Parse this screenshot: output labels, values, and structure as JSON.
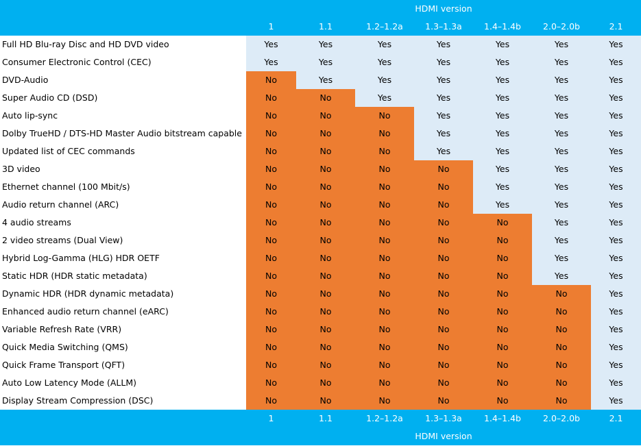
{
  "table": {
    "caption": "HDMI version",
    "versions": [
      "1",
      "1.1",
      "1.2–1.2a",
      "1.3–1.3a",
      "1.4–1.4b",
      "2.0–2.0b",
      "2.1"
    ],
    "rows": [
      {
        "feature": "Full HD Blu-ray Disc and HD DVD video",
        "values": [
          "Yes",
          "Yes",
          "Yes",
          "Yes",
          "Yes",
          "Yes",
          "Yes"
        ]
      },
      {
        "feature": "Consumer Electronic Control (CEC)",
        "values": [
          "Yes",
          "Yes",
          "Yes",
          "Yes",
          "Yes",
          "Yes",
          "Yes"
        ]
      },
      {
        "feature": "DVD-Audio",
        "values": [
          "No",
          "Yes",
          "Yes",
          "Yes",
          "Yes",
          "Yes",
          "Yes"
        ]
      },
      {
        "feature": "Super Audio CD (DSD)",
        "values": [
          "No",
          "No",
          "Yes",
          "Yes",
          "Yes",
          "Yes",
          "Yes"
        ]
      },
      {
        "feature": "Auto lip-sync",
        "values": [
          "No",
          "No",
          "No",
          "Yes",
          "Yes",
          "Yes",
          "Yes"
        ]
      },
      {
        "feature": "Dolby TrueHD / DTS-HD Master Audio bitstream capable",
        "values": [
          "No",
          "No",
          "No",
          "Yes",
          "Yes",
          "Yes",
          "Yes"
        ]
      },
      {
        "feature": "Updated list of CEC commands",
        "values": [
          "No",
          "No",
          "No",
          "Yes",
          "Yes",
          "Yes",
          "Yes"
        ]
      },
      {
        "feature": "3D video",
        "values": [
          "No",
          "No",
          "No",
          "No",
          "Yes",
          "Yes",
          "Yes"
        ]
      },
      {
        "feature": "Ethernet channel (100 Mbit/s)",
        "values": [
          "No",
          "No",
          "No",
          "No",
          "Yes",
          "Yes",
          "Yes"
        ]
      },
      {
        "feature": "Audio return channel (ARC)",
        "values": [
          "No",
          "No",
          "No",
          "No",
          "Yes",
          "Yes",
          "Yes"
        ]
      },
      {
        "feature": "4 audio streams",
        "values": [
          "No",
          "No",
          "No",
          "No",
          "No",
          "Yes",
          "Yes"
        ]
      },
      {
        "feature": "2 video streams (Dual View)",
        "values": [
          "No",
          "No",
          "No",
          "No",
          "No",
          "Yes",
          "Yes"
        ]
      },
      {
        "feature": "Hybrid Log-Gamma (HLG) HDR OETF",
        "values": [
          "No",
          "No",
          "No",
          "No",
          "No",
          "Yes",
          "Yes"
        ]
      },
      {
        "feature": "Static HDR (HDR static metadata)",
        "values": [
          "No",
          "No",
          "No",
          "No",
          "No",
          "Yes",
          "Yes"
        ]
      },
      {
        "feature": "Dynamic HDR (HDR dynamic metadata)",
        "values": [
          "No",
          "No",
          "No",
          "No",
          "No",
          "No",
          "Yes"
        ]
      },
      {
        "feature": "Enhanced audio return channel (eARC)",
        "values": [
          "No",
          "No",
          "No",
          "No",
          "No",
          "No",
          "Yes"
        ]
      },
      {
        "feature": "Variable Refresh Rate (VRR)",
        "values": [
          "No",
          "No",
          "No",
          "No",
          "No",
          "No",
          "Yes"
        ]
      },
      {
        "feature": "Quick Media Switching (QMS)",
        "values": [
          "No",
          "No",
          "No",
          "No",
          "No",
          "No",
          "Yes"
        ]
      },
      {
        "feature": "Quick Frame Transport (QFT)",
        "values": [
          "No",
          "No",
          "No",
          "No",
          "No",
          "No",
          "Yes"
        ]
      },
      {
        "feature": "Auto Low Latency Mode (ALLM)",
        "values": [
          "No",
          "No",
          "No",
          "No",
          "No",
          "No",
          "Yes"
        ]
      },
      {
        "feature": "Display Stream Compression (DSC)",
        "values": [
          "No",
          "No",
          "No",
          "No",
          "No",
          "No",
          "Yes"
        ]
      }
    ]
  },
  "colors": {
    "header_band": "#00b0f0",
    "yes_cell": "#ddebf7",
    "no_cell": "#ed7d31"
  }
}
